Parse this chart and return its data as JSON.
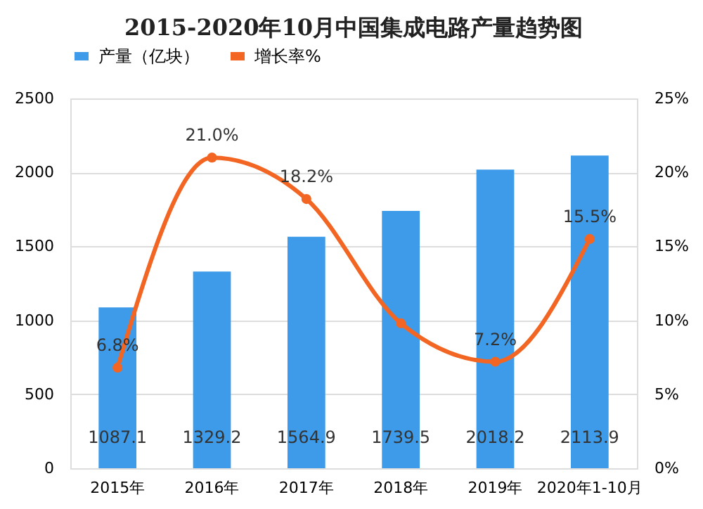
{
  "chart_data": {
    "type": "bar",
    "title": "2015-2020年10月中国集成电路产量趋势图",
    "categories": [
      "2015年",
      "2016年",
      "2017年",
      "2018年",
      "2019年",
      "2020年1-10月"
    ],
    "series": [
      {
        "name": "产量（亿块）",
        "color": "#3d9be9",
        "values": [
          1087.1,
          1329.2,
          1564.9,
          1739.5,
          2018.2,
          2113.9
        ],
        "data_labels": true
      },
      {
        "name": "增长率%",
        "type": "line",
        "axis": "y2",
        "color": "#f26522",
        "marker": "circle",
        "values": [
          6.8,
          21.0,
          18.2,
          9.8,
          7.2,
          15.5
        ],
        "value_labels": [
          "6.8%",
          "21.0%",
          "18.2%",
          null,
          "7.2%",
          "15.5%"
        ]
      }
    ],
    "ylim": [
      0,
      2500
    ],
    "yticks": [
      0,
      500,
      1000,
      1500,
      2000,
      2500
    ],
    "y2lim": [
      0,
      25
    ],
    "y2ticks": [
      {
        "value": 0,
        "label": "0%"
      },
      {
        "value": 5,
        "label": "5%"
      },
      {
        "value": 10,
        "label": "10%"
      },
      {
        "value": 15,
        "label": "15%"
      },
      {
        "value": 20,
        "label": "20%"
      },
      {
        "value": 25,
        "label": "25%"
      }
    ],
    "grid": "y",
    "legend": "top"
  }
}
